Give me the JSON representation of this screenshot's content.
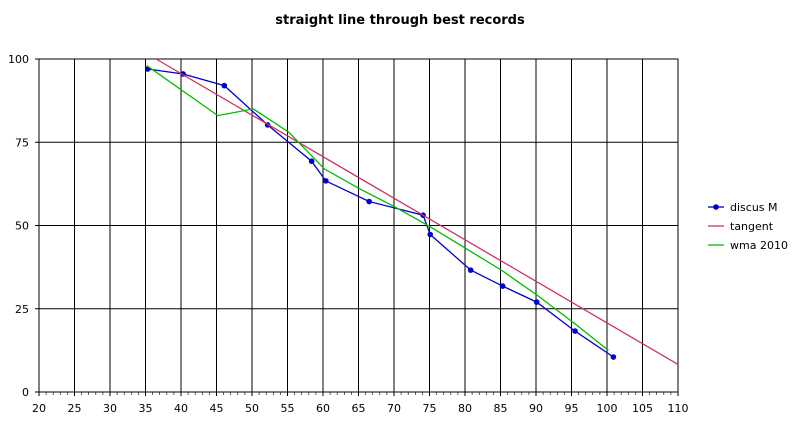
{
  "chart_data": {
    "type": "line",
    "title": "straight line through best records",
    "xlabel": "",
    "ylabel": "",
    "xlim": [
      20,
      110
    ],
    "ylim": [
      0,
      100
    ],
    "x_ticks": [
      20,
      25,
      30,
      35,
      40,
      45,
      50,
      55,
      60,
      65,
      70,
      75,
      80,
      85,
      90,
      95,
      100,
      105,
      110
    ],
    "y_ticks": [
      0,
      25,
      50,
      75,
      100
    ],
    "grid": "on",
    "legend_position": "right",
    "series": [
      {
        "name": "discus M",
        "color": "#0000cc",
        "marker": "dot",
        "points": [
          [
            35.3,
            97
          ],
          [
            40.3,
            95.5
          ],
          [
            46.1,
            92
          ],
          [
            52.2,
            80.2
          ],
          [
            58.4,
            69.3
          ],
          [
            60.4,
            63.4
          ],
          [
            66.5,
            57.2
          ],
          [
            74.1,
            53.1
          ],
          [
            75.1,
            47.3
          ],
          [
            80.8,
            36.6
          ],
          [
            85.3,
            31.8
          ],
          [
            90.1,
            27
          ],
          [
            95.5,
            18.3
          ],
          [
            100.9,
            10.5
          ]
        ]
      },
      {
        "name": "tangent",
        "color": "#cc3366",
        "marker": "none",
        "points": [
          [
            36.5,
            100
          ],
          [
            110,
            8.3
          ]
        ]
      },
      {
        "name": "wma 2010",
        "color": "#00bb00",
        "marker": "none",
        "points": [
          [
            35.2,
            98
          ],
          [
            45.2,
            83
          ],
          [
            50.2,
            85
          ],
          [
            55.2,
            78
          ],
          [
            60.2,
            67
          ],
          [
            65.2,
            61
          ],
          [
            70.2,
            55.5
          ],
          [
            75.2,
            49.5
          ],
          [
            80.2,
            43
          ],
          [
            85.2,
            36.5
          ],
          [
            90.2,
            29
          ],
          [
            95.2,
            21
          ],
          [
            100.2,
            12.5
          ]
        ]
      }
    ]
  }
}
